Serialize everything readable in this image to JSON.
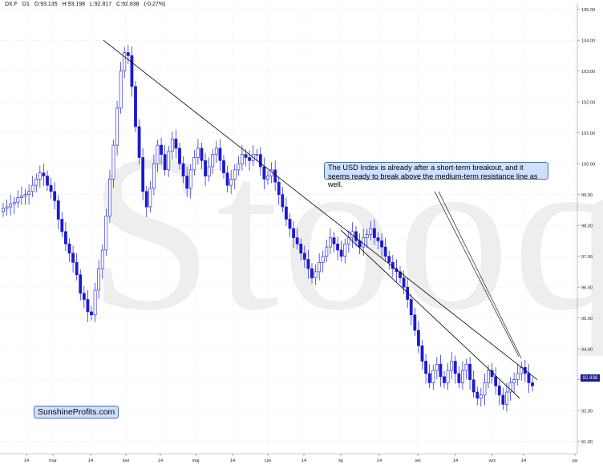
{
  "header": {
    "symbol": "DX.F",
    "timeframe": "D1",
    "open": "O:93.135",
    "high": "H:93.198",
    "low": "L:92.817",
    "close": "C:92.838",
    "change": "(-0.27%)"
  },
  "watermark": "Stooq",
  "annotation": "The USD Index is already after a short-term breakout, and it seems ready to break above the medium-term resistance line as well.",
  "brand": "SunshineProfits.com",
  "last_price_label": "92.838",
  "colors": {
    "candle": "#1a1ad0",
    "grid": "#e6e6e6",
    "annotation_bg": "#cfe0ff",
    "line": "#000000"
  },
  "chart_data": {
    "type": "candlestick",
    "title": "",
    "xlabel": "",
    "ylabel": "",
    "ylim": [
      90.6,
      105.2
    ],
    "grid": true,
    "y_ticks": [
      "91.00",
      "92.00",
      "93.00",
      "94.00",
      "95.00",
      "96.00",
      "97.00",
      "98.00",
      "99.00",
      "100.00",
      "101.00",
      "102.00",
      "103.00",
      "104.00",
      "105.00"
    ],
    "x_ticks": [
      "14",
      "mar",
      "14",
      "kwi",
      "14",
      "maj",
      "14",
      "cze",
      "14",
      "lip",
      "14",
      "sie",
      "14",
      "wrz",
      "14",
      "pa"
    ],
    "closes": [
      98.55,
      98.6,
      98.7,
      98.75,
      98.9,
      98.95,
      99.0,
      99.1,
      99.3,
      99.5,
      99.7,
      99.6,
      99.3,
      99.1,
      98.8,
      98.2,
      97.8,
      97.4,
      97.1,
      96.8,
      96.4,
      95.8,
      95.6,
      95.2,
      95.1,
      95.9,
      96.6,
      97.2,
      98.3,
      99.5,
      100.6,
      101.8,
      103.0,
      103.6,
      103.5,
      102.5,
      101.2,
      100.2,
      99.1,
      98.6,
      99.2,
      100.0,
      100.6,
      100.3,
      99.8,
      100.4,
      100.8,
      100.5,
      100.0,
      99.6,
      99.2,
      99.8,
      100.2,
      100.5,
      100.1,
      99.6,
      99.9,
      100.3,
      100.5,
      100.1,
      99.7,
      99.3,
      99.5,
      99.8,
      100.0,
      100.3,
      100.2,
      100.1,
      100.3,
      100.3,
      99.9,
      99.5,
      99.6,
      99.8,
      99.4,
      99.0,
      98.6,
      98.2,
      97.9,
      97.6,
      97.4,
      97.1,
      96.9,
      96.6,
      96.3,
      96.5,
      96.8,
      97.0,
      97.3,
      97.6,
      97.4,
      97.2,
      97.0,
      97.4,
      97.6,
      97.8,
      97.5,
      97.3,
      97.6,
      97.7,
      97.9,
      97.6,
      97.5,
      97.3,
      97.0,
      96.8,
      96.6,
      96.5,
      96.3,
      96.0,
      95.6,
      95.1,
      94.6,
      94.1,
      93.6,
      93.2,
      92.9,
      93.3,
      93.5,
      93.1,
      92.9,
      93.3,
      93.6,
      93.2,
      92.9,
      93.3,
      93.5,
      93.0,
      92.6,
      92.4,
      92.5,
      92.9,
      93.3,
      93.1,
      92.8,
      92.5,
      92.2,
      92.6,
      92.9,
      93.0,
      93.2,
      93.4,
      93.2,
      92.9,
      92.8
    ]
  }
}
